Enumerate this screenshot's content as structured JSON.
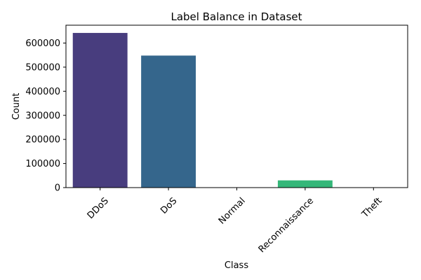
{
  "chart_data": {
    "type": "bar",
    "title": "Label Balance in Dataset",
    "xlabel": "Class",
    "ylabel": "Count",
    "categories": [
      "DDoS",
      "DoS",
      "Normal",
      "Reconnaissance",
      "Theft"
    ],
    "values": [
      642000,
      548000,
      800,
      30000,
      600
    ],
    "colors": [
      "#483d7e",
      "#35668c",
      "#25888a",
      "#35b779",
      "#8fd744"
    ],
    "yticks": [
      0,
      100000,
      200000,
      300000,
      400000,
      500000,
      600000
    ],
    "ylim": [
      0,
      674100
    ],
    "grid": false,
    "legend": "none"
  }
}
